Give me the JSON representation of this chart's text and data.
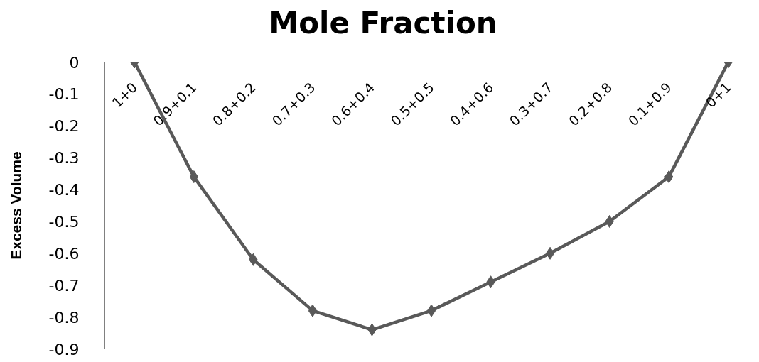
{
  "chart_data": {
    "type": "line",
    "title": "Mole Fraction",
    "ylabel": "Excess Volume",
    "categories": [
      "1+0",
      "0.9+0.1",
      "0.8+0.2",
      "0.7+0.3",
      "0.6+0.4",
      "0.5+0.5",
      "0.4+0.6",
      "0.3+0.7",
      "0.2+0.8",
      "0.1+0.9",
      "0+1"
    ],
    "series": [
      {
        "color": "#595959",
        "values": [
          0,
          -0.36,
          -0.62,
          -0.78,
          -0.84,
          -0.78,
          -0.69,
          -0.6,
          -0.5,
          -0.36,
          0
        ]
      }
    ],
    "ylim": [
      -0.9,
      0
    ],
    "yticks": [
      -0.9,
      -0.8,
      -0.7,
      -0.6,
      -0.5,
      -0.4,
      -0.3,
      -0.2,
      -0.1,
      0
    ],
    "grid": false,
    "marker": "diamond",
    "line_style": "solid"
  }
}
